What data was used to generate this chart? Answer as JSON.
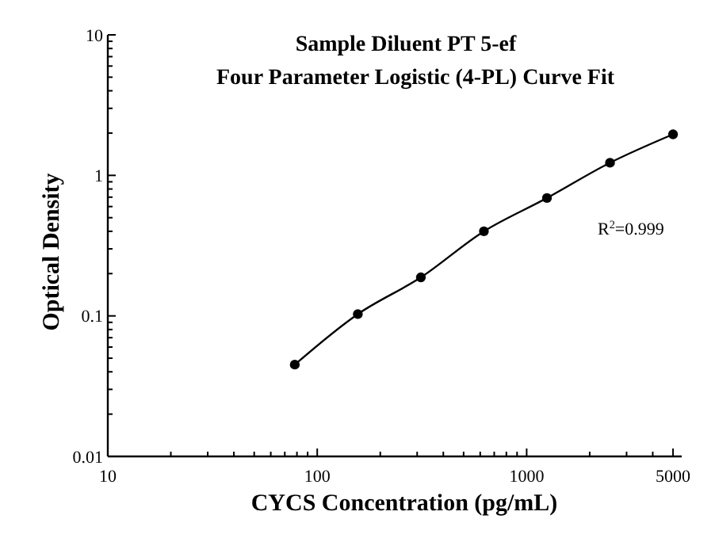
{
  "chart_data": {
    "type": "scatter",
    "title": "Sample Diluent PT 5-ef",
    "subtitle": "Four Parameter Logistic (4-PL) Curve Fit",
    "xlabel": "CYCS Concentration (pg/mL)",
    "ylabel": "Optical Density",
    "log": "xy",
    "grid": false,
    "marker": "circle",
    "xlim": [
      10,
      5500
    ],
    "ylim": [
      0.01,
      10
    ],
    "xticks": [
      10,
      {
        "value": 20,
        "label": null
      },
      {
        "value": 30,
        "label": null
      },
      {
        "value": 40,
        "label": null
      },
      {
        "value": 50,
        "label": null
      },
      {
        "value": 60,
        "label": null
      },
      {
        "value": 70,
        "label": null
      },
      {
        "value": 80,
        "label": null
      },
      {
        "value": 90,
        "label": null
      },
      100,
      {
        "value": 200,
        "label": null
      },
      {
        "value": 300,
        "label": null
      },
      {
        "value": 400,
        "label": null
      },
      {
        "value": 500,
        "label": null
      },
      {
        "value": 600,
        "label": null
      },
      {
        "value": 700,
        "label": null
      },
      {
        "value": 800,
        "label": null
      },
      {
        "value": 900,
        "label": null
      },
      1000,
      {
        "value": 2000,
        "label": null
      },
      {
        "value": 3000,
        "label": null
      },
      {
        "value": 4000,
        "label": null
      },
      5000
    ],
    "yticks": [
      0.01,
      {
        "value": 0.02,
        "label": null
      },
      {
        "value": 0.03,
        "label": null
      },
      {
        "value": 0.04,
        "label": null
      },
      {
        "value": 0.05,
        "label": null
      },
      {
        "value": 0.06,
        "label": null
      },
      {
        "value": 0.07,
        "label": null
      },
      {
        "value": 0.08,
        "label": null
      },
      {
        "value": 0.09,
        "label": null
      },
      0.1,
      {
        "value": 0.2,
        "label": null
      },
      {
        "value": 0.3,
        "label": null
      },
      {
        "value": 0.4,
        "label": null
      },
      {
        "value": 0.5,
        "label": null
      },
      {
        "value": 0.6,
        "label": null
      },
      {
        "value": 0.7,
        "label": null
      },
      {
        "value": 0.8,
        "label": null
      },
      {
        "value": 0.9,
        "label": null
      },
      1,
      {
        "value": 2,
        "label": null
      },
      {
        "value": 3,
        "label": null
      },
      {
        "value": 4,
        "label": null
      },
      {
        "value": 5,
        "label": null
      },
      {
        "value": 6,
        "label": null
      },
      {
        "value": 7,
        "label": null
      },
      {
        "value": 8,
        "label": null
      },
      {
        "value": 9,
        "label": null
      },
      10
    ],
    "series": [
      {
        "type": "line",
        "color": "#000000",
        "marker": "none",
        "x": [
          78.125,
          156.25,
          312.5,
          625,
          1250,
          2500,
          5000
        ],
        "values": [
          0.045,
          0.103,
          0.188,
          0.4,
          0.69,
          1.23,
          1.96
        ]
      },
      {
        "type": "scatter",
        "color": "#000000",
        "x": [
          78.125,
          156.25,
          312.5,
          625,
          1250,
          2500,
          5000
        ],
        "values": [
          0.045,
          0.103,
          0.188,
          0.4,
          0.69,
          1.23,
          1.96
        ]
      }
    ],
    "annotations": [
      "R$^{2}$=0.999"
    ]
  }
}
